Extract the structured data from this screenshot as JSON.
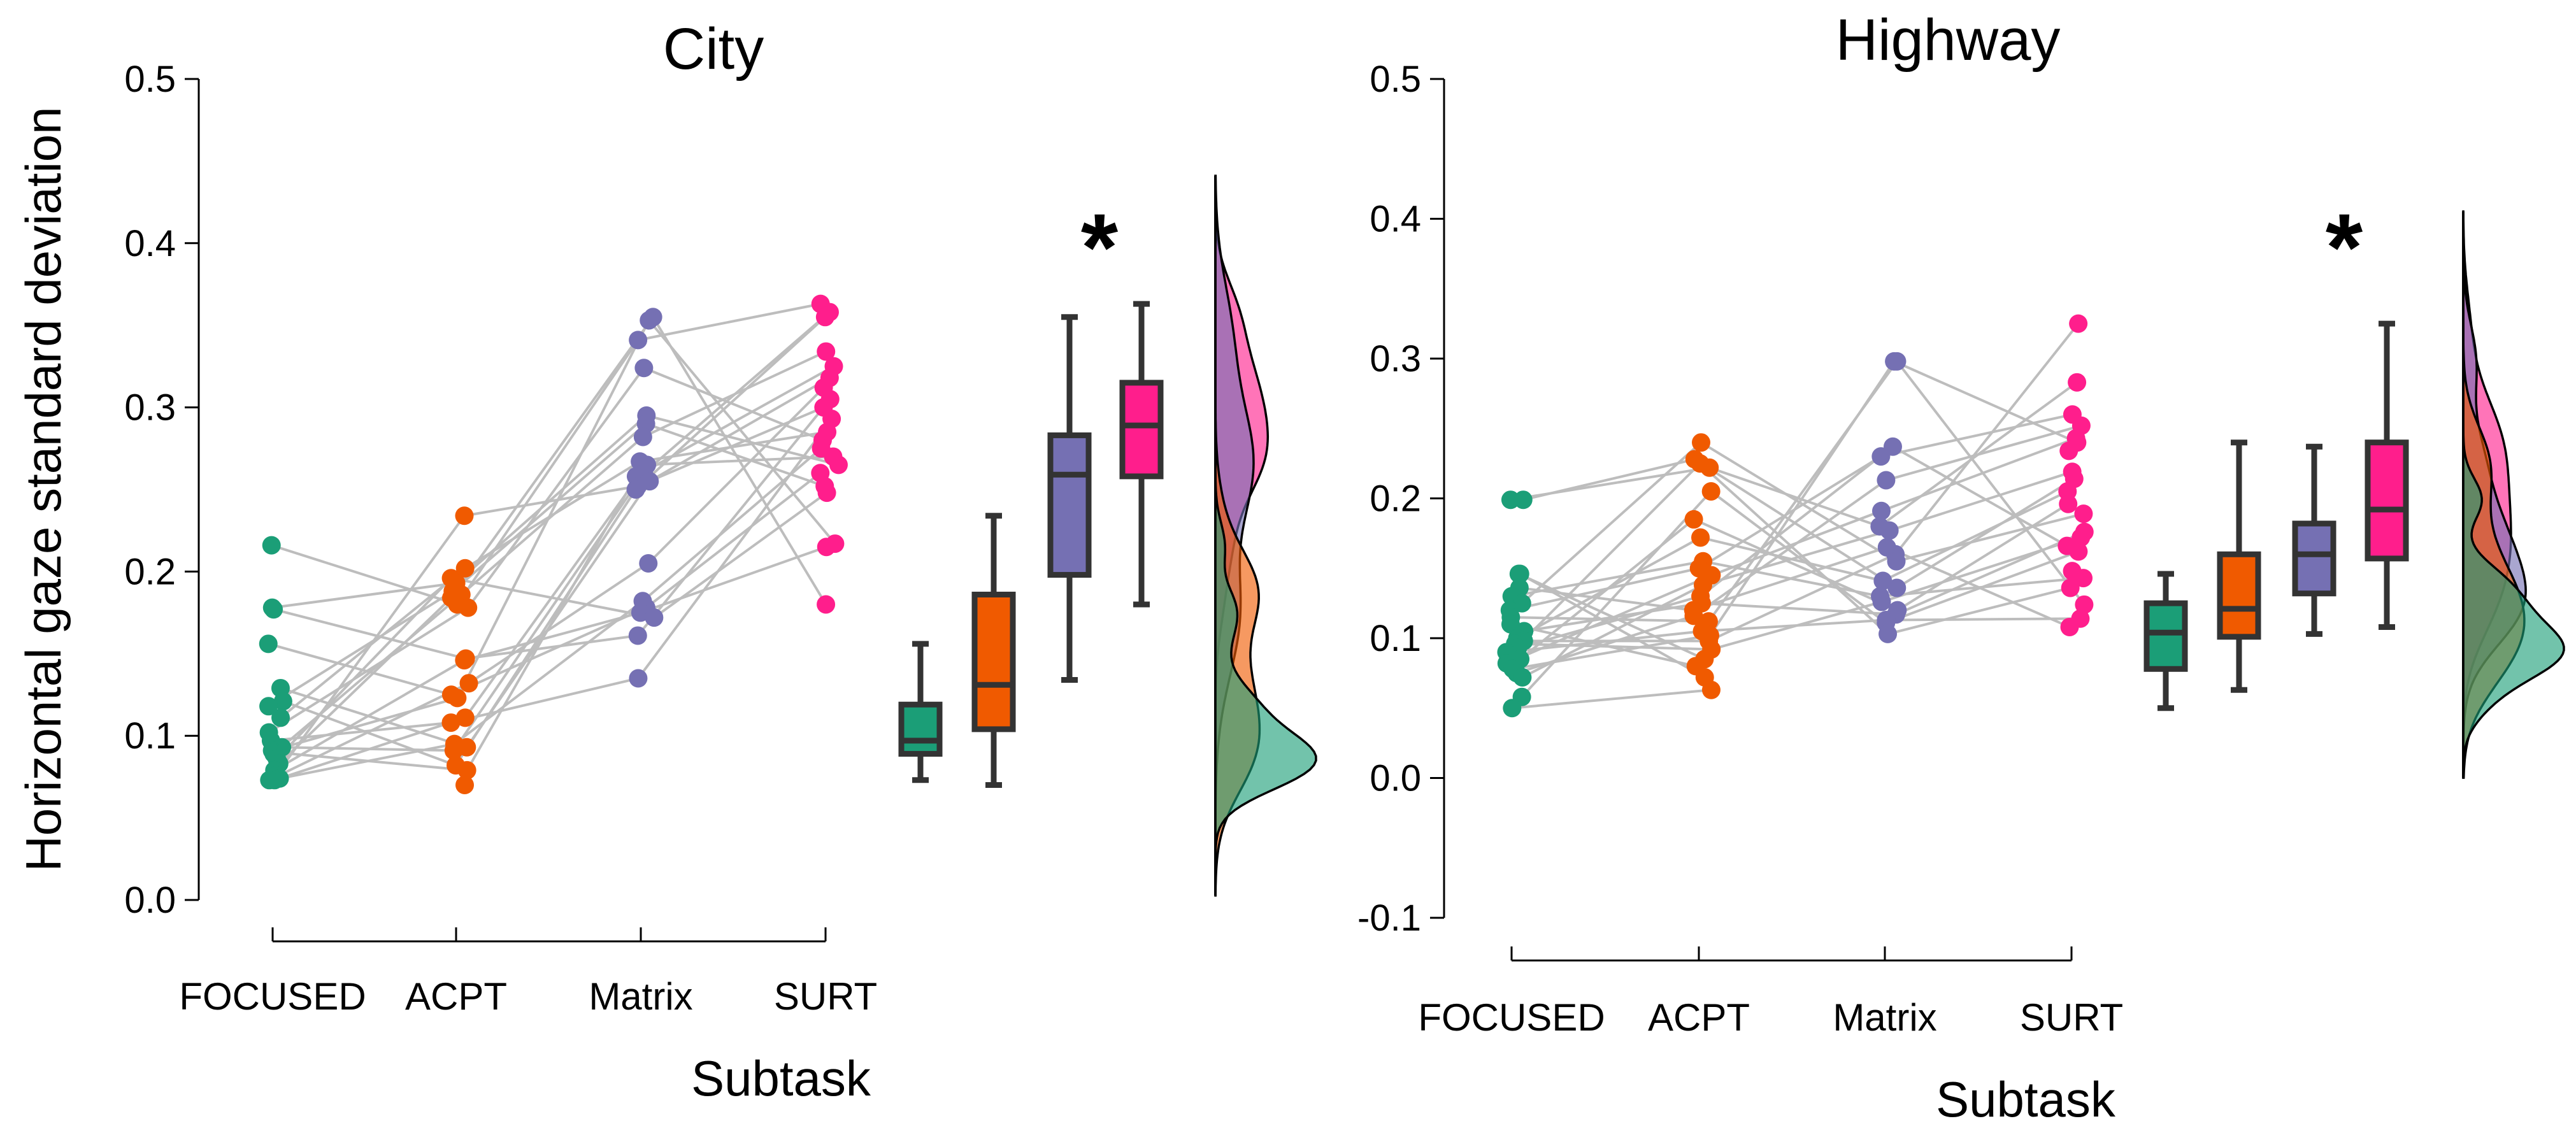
{
  "figure": {
    "ylabel": "Horizontal gaze standard deviation",
    "xlabel": "Subtask",
    "colors": {
      "FOCUSED": "#1b9e77",
      "ACPT": "#f05a00",
      "Matrix": "#7570b3",
      "SURT": "#ff1e8c",
      "pair_line": "#bdbdbd",
      "box_edge": "#333333"
    }
  },
  "chart_data": [
    {
      "type": "scatter",
      "title": "City",
      "xlabel": "Subtask",
      "ylabel": "Horizontal gaze standard deviation",
      "categories": [
        "FOCUSED",
        "ACPT",
        "Matrix",
        "SURT"
      ],
      "ylim": [
        0.0,
        0.5
      ],
      "yticks": [
        0.0,
        0.1,
        0.2,
        0.3,
        0.4,
        0.5
      ],
      "ytick_labels": [
        "0.0",
        "0.1",
        "0.2",
        "0.3",
        "0.4",
        "0.5"
      ],
      "grid": false,
      "significance_marker": "*",
      "significance_category": "Matrix",
      "series": [
        {
          "category": "FOCUSED",
          "values": [
            0.216,
            0.178,
            0.177,
            0.156,
            0.129,
            0.121,
            0.118,
            0.111,
            0.102,
            0.097,
            0.093,
            0.091,
            0.09,
            0.089,
            0.086,
            0.083,
            0.079,
            0.076,
            0.074,
            0.073,
            0.073
          ]
        },
        {
          "category": "ACPT",
          "values": [
            0.234,
            0.202,
            0.196,
            0.193,
            0.188,
            0.186,
            0.184,
            0.18,
            0.178,
            0.147,
            0.146,
            0.132,
            0.125,
            0.123,
            0.111,
            0.108,
            0.095,
            0.093,
            0.091,
            0.082,
            0.079,
            0.07
          ]
        },
        {
          "category": "Matrix",
          "values": [
            0.355,
            0.353,
            0.341,
            0.324,
            0.295,
            0.29,
            0.282,
            0.267,
            0.265,
            0.26,
            0.258,
            0.255,
            0.252,
            0.25,
            0.205,
            0.182,
            0.178,
            0.175,
            0.172,
            0.161,
            0.135
          ]
        },
        {
          "category": "SURT",
          "values": [
            0.363,
            0.358,
            0.355,
            0.334,
            0.325,
            0.318,
            0.312,
            0.305,
            0.3,
            0.293,
            0.285,
            0.28,
            0.275,
            0.27,
            0.265,
            0.26,
            0.252,
            0.248,
            0.217,
            0.215,
            0.18
          ]
        }
      ],
      "boxplots": [
        {
          "category": "FOCUSED",
          "min": 0.073,
          "q1": 0.089,
          "median": 0.097,
          "q3": 0.119,
          "max": 0.156
        },
        {
          "category": "ACPT",
          "min": 0.07,
          "q1": 0.104,
          "median": 0.131,
          "q3": 0.186,
          "max": 0.234
        },
        {
          "category": "Matrix",
          "min": 0.134,
          "q1": 0.198,
          "median": 0.259,
          "q3": 0.283,
          "max": 0.355
        },
        {
          "category": "SURT",
          "min": 0.18,
          "q1": 0.258,
          "median": 0.289,
          "q3": 0.315,
          "max": 0.363
        }
      ]
    },
    {
      "type": "scatter",
      "title": "Highway",
      "xlabel": "Subtask",
      "ylabel": "",
      "categories": [
        "FOCUSED",
        "ACPT",
        "Matrix",
        "SURT"
      ],
      "ylim": [
        -0.1,
        0.5
      ],
      "yticks": [
        -0.1,
        0.0,
        0.1,
        0.2,
        0.3,
        0.4,
        0.5
      ],
      "ytick_labels": [
        "-0.1",
        "0.0",
        "0.1",
        "0.2",
        "0.3",
        "0.4",
        "0.5"
      ],
      "grid": false,
      "significance_marker": "*",
      "significance_category": "SURT",
      "series": [
        {
          "category": "FOCUSED",
          "values": [
            0.199,
            0.199,
            0.146,
            0.146,
            0.136,
            0.13,
            0.125,
            0.12,
            0.115,
            0.11,
            0.105,
            0.1,
            0.098,
            0.096,
            0.093,
            0.09,
            0.088,
            0.085,
            0.082,
            0.078,
            0.075,
            0.072,
            0.058,
            0.05
          ]
        },
        {
          "category": "ACPT",
          "values": [
            0.24,
            0.228,
            0.225,
            0.222,
            0.205,
            0.185,
            0.172,
            0.155,
            0.15,
            0.145,
            0.138,
            0.13,
            0.125,
            0.12,
            0.116,
            0.112,
            0.105,
            0.102,
            0.098,
            0.092,
            0.085,
            0.08,
            0.072,
            0.063
          ]
        },
        {
          "category": "Matrix",
          "values": [
            0.298,
            0.298,
            0.237,
            0.23,
            0.213,
            0.191,
            0.18,
            0.177,
            0.165,
            0.16,
            0.155,
            0.141,
            0.136,
            0.13,
            0.126,
            0.12,
            0.117,
            0.113,
            0.111,
            0.103
          ]
        },
        {
          "category": "SURT",
          "values": [
            0.325,
            0.283,
            0.26,
            0.252,
            0.243,
            0.24,
            0.234,
            0.219,
            0.214,
            0.205,
            0.196,
            0.189,
            0.176,
            0.172,
            0.166,
            0.162,
            0.148,
            0.143,
            0.136,
            0.124,
            0.114,
            0.108
          ]
        }
      ],
      "boxplots": [
        {
          "category": "FOCUSED",
          "min": 0.05,
          "q1": 0.078,
          "median": 0.104,
          "q3": 0.125,
          "max": 0.146
        },
        {
          "category": "ACPT",
          "min": 0.063,
          "q1": 0.101,
          "median": 0.121,
          "q3": 0.16,
          "max": 0.24
        },
        {
          "category": "Matrix",
          "min": 0.103,
          "q1": 0.132,
          "median": 0.16,
          "q3": 0.182,
          "max": 0.237
        },
        {
          "category": "SURT",
          "min": 0.108,
          "q1": 0.157,
          "median": 0.192,
          "q3": 0.24,
          "max": 0.325
        }
      ]
    }
  ]
}
